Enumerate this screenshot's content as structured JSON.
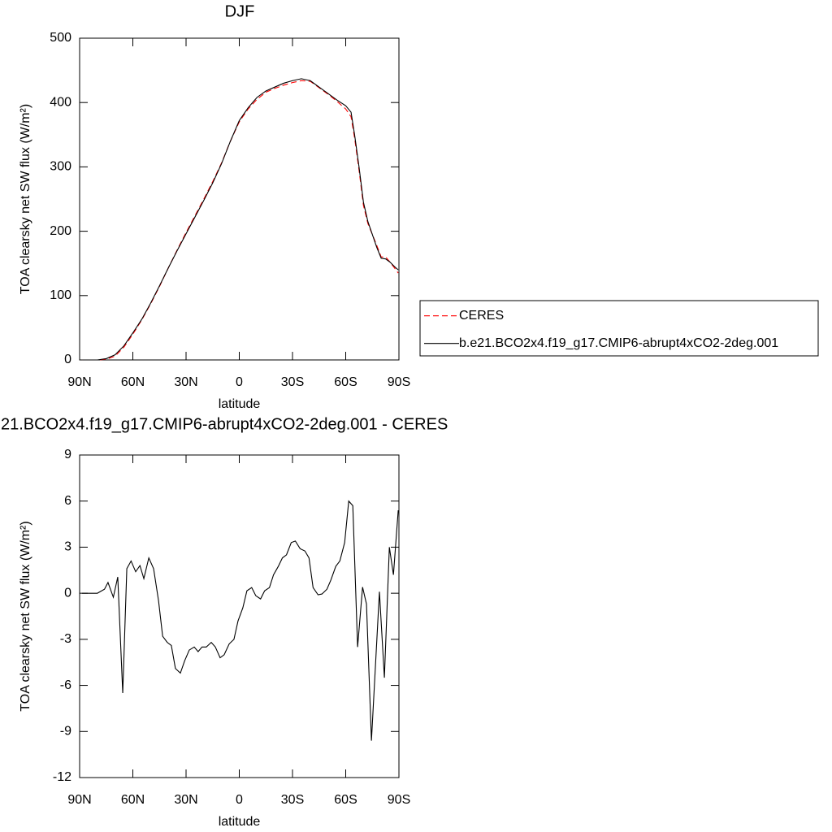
{
  "chart_data": [
    {
      "type": "line",
      "title": "DJF",
      "xlabel": "latitude",
      "ylabel": "TOA clearsky net SW flux (W/m²)",
      "x": [
        88.6,
        80,
        75,
        70,
        65,
        60,
        55,
        50,
        45,
        40,
        35,
        30,
        25,
        20,
        15,
        10,
        5,
        0,
        -5,
        -10,
        -15,
        -20,
        -25,
        -30,
        -35,
        -40,
        -45,
        -50,
        -55,
        -60,
        -63,
        -65,
        -67.5,
        -70,
        -72.5,
        -75,
        -77.5,
        -80,
        -82.5,
        -85,
        -87.5,
        -89.6
      ],
      "series": [
        {
          "name": "CERES",
          "color": "#ff0000",
          "dashed": true,
          "values": [
            0,
            0,
            1,
            6,
            20,
            40,
            62,
            87,
            114,
            143,
            171,
            198,
            224,
            250,
            277,
            306,
            340,
            370,
            390,
            405,
            416,
            422,
            427,
            431,
            434,
            433,
            423,
            413,
            402,
            390,
            378,
            345,
            295,
            240,
            212,
            195,
            178,
            160,
            160,
            152,
            143,
            135
          ]
        },
        {
          "name": "b.e21.BCO2x4.f19_g17.CMIP6-abrupt4xCO2-2deg.001",
          "color": "#000000",
          "dashed": false,
          "values": [
            0,
            0,
            2,
            8,
            22,
            42,
            63,
            88,
            115,
            143,
            170,
            196,
            222,
            248,
            275,
            305,
            340,
            372,
            392,
            408,
            418,
            424,
            430,
            434,
            437,
            434,
            424,
            414,
            404,
            395,
            385,
            350,
            300,
            245,
            215,
            195,
            175,
            158,
            157,
            152,
            145,
            140
          ]
        }
      ],
      "xlim": [
        90,
        -90
      ],
      "xticks": [
        {
          "value": 90,
          "label": "90N"
        },
        {
          "value": 60,
          "label": "60N"
        },
        {
          "value": 30,
          "label": "30N"
        },
        0,
        {
          "value": -30,
          "label": "30S"
        },
        {
          "value": -60,
          "label": "60S"
        },
        {
          "value": -90,
          "label": "90S"
        }
      ],
      "ylim": [
        0,
        500
      ],
      "yticks": [
        0,
        100,
        200,
        300,
        400,
        500
      ],
      "grid": false,
      "legend": "right"
    },
    {
      "type": "line",
      "title": "21.BCO2x4.f19_g17.CMIP6-abrupt4xCO2-2deg.001 - CERES",
      "xlabel": "latitude",
      "ylabel": "TOA clearsky net SW flux (W/m²)",
      "x": [
        88.6,
        80,
        76,
        74,
        71,
        68.5,
        65.7,
        63.4,
        61,
        58.4,
        56,
        53.8,
        51,
        48.3,
        45.5,
        43.2,
        40.6,
        38.3,
        36,
        33.2,
        30.8,
        28.2,
        25.4,
        23.2,
        21,
        18.6,
        15.8,
        13.5,
        10.8,
        8.5,
        5.7,
        3,
        0.7,
        -2,
        -4.3,
        -7,
        -9.3,
        -12,
        -14.3,
        -17,
        -19.3,
        -22,
        -24.3,
        -26.6,
        -29.3,
        -31.6,
        -34.3,
        -37,
        -39.3,
        -41.6,
        -44.4,
        -46.6,
        -49.4,
        -51.6,
        -54.4,
        -56.7,
        -59.4,
        -61.7,
        -64,
        -66.7,
        -69.5,
        -71.7,
        -74.5,
        -79,
        -81.8,
        -84.6,
        -86.9,
        -89.6
      ],
      "series": [
        {
          "color": "#000000",
          "dashed": false,
          "values": [
            0,
            0,
            0.26,
            0.7,
            -0.26,
            1.06,
            -6.5,
            1.6,
            2.1,
            1.4,
            1.8,
            0.95,
            2.3,
            1.6,
            -0.5,
            -2.8,
            -3.2,
            -3.4,
            -4.9,
            -5.2,
            -4.4,
            -3.7,
            -3.5,
            -3.8,
            -3.5,
            -3.5,
            -3.2,
            -3.5,
            -4.2,
            -4.0,
            -3.3,
            -3.0,
            -1.8,
            -0.95,
            0.16,
            0.37,
            -0.16,
            -0.37,
            0.16,
            0.37,
            1.2,
            1.75,
            2.3,
            2.5,
            3.3,
            3.4,
            2.9,
            2.75,
            2.3,
            0.37,
            -0.1,
            -0.05,
            0.26,
            0.85,
            1.75,
            2.1,
            3.3,
            6.0,
            5.7,
            -3.5,
            0.4,
            -0.7,
            -9.6,
            0.1,
            -5.5,
            3.0,
            1.2,
            5.4
          ]
        }
      ],
      "xlim": [
        90,
        -90
      ],
      "xticks": [
        {
          "value": 90,
          "label": "90N"
        },
        {
          "value": 60,
          "label": "60N"
        },
        {
          "value": 30,
          "label": "30N"
        },
        0,
        {
          "value": -30,
          "label": "30S"
        },
        {
          "value": -60,
          "label": "60S"
        },
        {
          "value": -90,
          "label": "90S"
        }
      ],
      "ylim": [
        -12,
        9
      ],
      "yticks": [
        -12,
        -9,
        -6,
        -3,
        0,
        3,
        6,
        9
      ],
      "grid": false
    }
  ]
}
